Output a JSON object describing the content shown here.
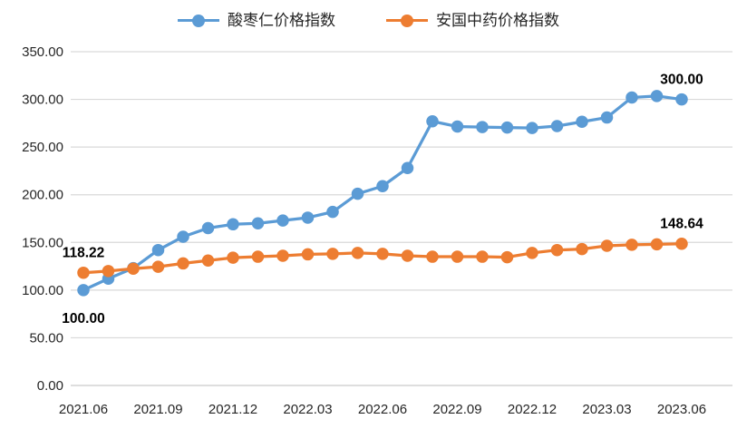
{
  "chart_data": {
    "type": "line",
    "x": [
      "2021.06",
      "2021.07",
      "2021.08",
      "2021.09",
      "2021.10",
      "2021.11",
      "2021.12",
      "2022.01",
      "2022.02",
      "2022.03",
      "2022.04",
      "2022.05",
      "2022.06",
      "2022.07",
      "2022.08",
      "2022.09",
      "2022.10",
      "2022.11",
      "2022.12",
      "2023.01",
      "2023.02",
      "2023.03",
      "2023.04",
      "2023.05",
      "2023.06"
    ],
    "x_tick_labels": [
      "2021.06",
      "2021.09",
      "2021.12",
      "2022.03",
      "2022.06",
      "2022.09",
      "2022.12",
      "2023.03",
      "2023.06"
    ],
    "y_tick_labels": [
      "0.00",
      "50.00",
      "100.00",
      "150.00",
      "200.00",
      "250.00",
      "300.00",
      "350.00"
    ],
    "ylim": [
      0,
      350
    ],
    "y_tick_step": 50,
    "grid": "horizontal",
    "legend_position": "top",
    "series": [
      {
        "name": "酸枣仁价格指数",
        "color": "#5B9BD5",
        "values": [
          100.0,
          112,
          123,
          142,
          156,
          165,
          169,
          170,
          173,
          176,
          182,
          201,
          209,
          228,
          277,
          271.5,
          271,
          270.5,
          270,
          272,
          276.5,
          281,
          302,
          303.5,
          300.0
        ]
      },
      {
        "name": "安国中药价格指数",
        "color": "#ED7D31",
        "values": [
          118.22,
          120,
          122.5,
          124.5,
          128,
          131,
          134,
          135,
          136,
          137.5,
          138,
          139,
          138,
          136,
          135,
          135,
          135,
          134.5,
          139,
          142,
          143,
          146.5,
          147.5,
          148,
          148.64
        ]
      }
    ],
    "annotations": [
      {
        "series": 0,
        "index": 0,
        "text": "100.00",
        "position": "below"
      },
      {
        "series": 0,
        "index": 24,
        "text": "300.00",
        "position": "above"
      },
      {
        "series": 1,
        "index": 0,
        "text": "118.22",
        "position": "above"
      },
      {
        "series": 1,
        "index": 24,
        "text": "148.64",
        "position": "above"
      }
    ]
  },
  "colors": {
    "gridline": "#d9d9d9",
    "axis_line": "#c9c9c9",
    "axis_text": "#262626",
    "data_label": "#000000",
    "background": "#ffffff"
  }
}
